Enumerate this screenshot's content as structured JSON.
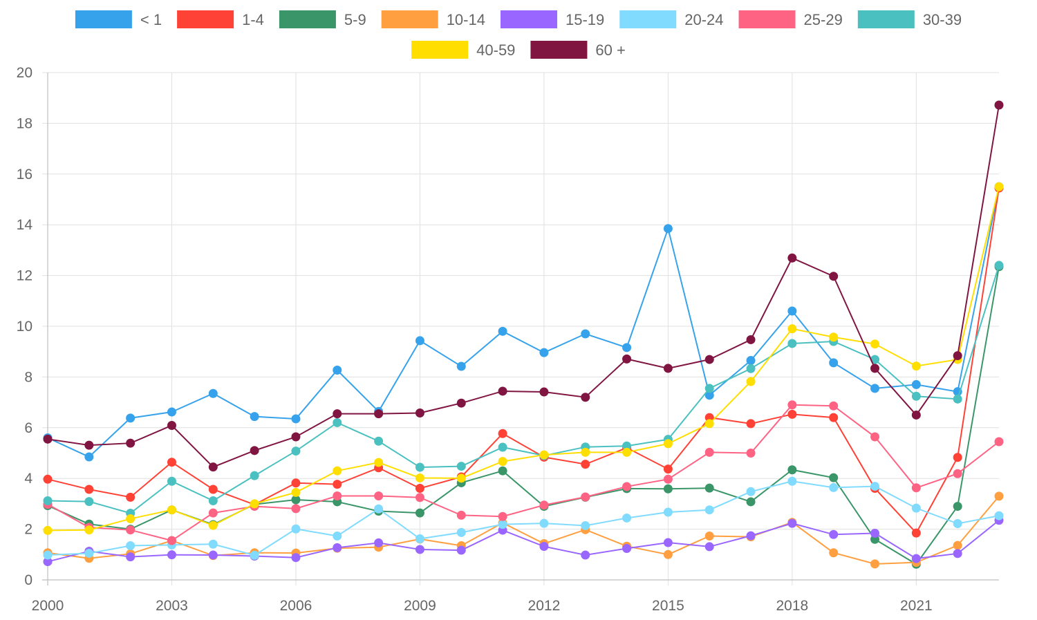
{
  "chart_data": {
    "type": "line",
    "title": "",
    "xlabel": "",
    "ylabel": "",
    "x": [
      2000,
      2001,
      2002,
      2003,
      2004,
      2005,
      2006,
      2007,
      2008,
      2009,
      2010,
      2011,
      2012,
      2013,
      2014,
      2015,
      2016,
      2017,
      2018,
      2019,
      2020,
      2021,
      2022,
      2023
    ],
    "x_ticks": [
      "2000",
      "2003",
      "2006",
      "2009",
      "2012",
      "2015",
      "2018",
      "2021"
    ],
    "xlim": [
      2000,
      2023
    ],
    "ylim": [
      0,
      20
    ],
    "y_ticks": [
      "0",
      "2",
      "4",
      "6",
      "8",
      "10",
      "12",
      "14",
      "16",
      "18",
      "20"
    ],
    "grid": true,
    "legend_position": "top",
    "series": [
      {
        "name": "< 1",
        "color": "#36a2eb",
        "values": [
          5.6,
          4.85,
          6.38,
          6.62,
          7.35,
          6.44,
          6.35,
          8.27,
          6.64,
          9.43,
          8.42,
          9.8,
          8.96,
          9.7,
          9.16,
          13.85,
          7.28,
          8.65,
          10.6,
          8.56,
          7.55,
          7.7,
          7.42,
          15.5
        ]
      },
      {
        "name": "1-4",
        "color": "#ff4136",
        "values": [
          3.97,
          3.57,
          3.26,
          4.64,
          3.57,
          2.97,
          3.82,
          3.77,
          4.42,
          3.61,
          4.06,
          5.77,
          4.84,
          4.56,
          5.21,
          4.37,
          6.4,
          6.16,
          6.53,
          6.4,
          3.61,
          1.85,
          4.83,
          15.45
        ]
      },
      {
        "name": "5-9",
        "color": "#3a9669",
        "values": [
          2.93,
          2.2,
          2.0,
          2.76,
          2.18,
          2.98,
          3.16,
          3.08,
          2.71,
          2.64,
          3.83,
          4.3,
          2.9,
          3.26,
          3.6,
          3.59,
          3.62,
          3.08,
          4.34,
          4.03,
          1.6,
          0.62,
          2.9,
          12.35
        ]
      },
      {
        "name": "10-14",
        "color": "#ff9f40",
        "values": [
          1.07,
          0.85,
          1.03,
          1.55,
          0.96,
          1.07,
          1.06,
          1.25,
          1.29,
          1.61,
          1.35,
          2.25,
          1.43,
          1.98,
          1.33,
          1.0,
          1.73,
          1.7,
          2.27,
          1.07,
          0.63,
          0.69,
          1.36,
          3.3
        ]
      },
      {
        "name": "15-19",
        "color": "#9966ff",
        "values": [
          0.72,
          1.13,
          0.91,
          0.99,
          0.98,
          0.94,
          0.88,
          1.27,
          1.46,
          1.2,
          1.17,
          1.96,
          1.32,
          0.98,
          1.24,
          1.47,
          1.31,
          1.74,
          2.23,
          1.79,
          1.84,
          0.84,
          1.04,
          2.35
        ]
      },
      {
        "name": "20-24",
        "color": "#80dbff",
        "values": [
          0.98,
          1.05,
          1.35,
          1.38,
          1.41,
          0.97,
          2.01,
          1.73,
          2.8,
          1.62,
          1.87,
          2.19,
          2.23,
          2.14,
          2.44,
          2.67,
          2.76,
          3.48,
          3.89,
          3.64,
          3.69,
          2.83,
          2.22,
          2.53
        ]
      },
      {
        "name": "25-29",
        "color": "#ff6384",
        "values": [
          2.98,
          2.07,
          1.97,
          1.55,
          2.64,
          2.9,
          2.81,
          3.31,
          3.31,
          3.25,
          2.55,
          2.5,
          2.95,
          3.27,
          3.68,
          3.97,
          5.03,
          5.0,
          6.9,
          6.86,
          5.64,
          3.63,
          4.19,
          5.45
        ]
      },
      {
        "name": "30-39",
        "color": "#4bc0c0",
        "values": [
          3.12,
          3.09,
          2.63,
          3.89,
          3.12,
          4.11,
          5.08,
          6.2,
          5.47,
          4.44,
          4.48,
          5.23,
          4.9,
          5.24,
          5.28,
          5.54,
          7.55,
          8.33,
          9.32,
          9.4,
          8.69,
          7.24,
          7.13,
          12.4
        ]
      },
      {
        "name": "40-59",
        "color": "#ffde00",
        "values": [
          1.95,
          1.97,
          2.41,
          2.76,
          2.15,
          3.0,
          3.45,
          4.3,
          4.63,
          4.02,
          4.01,
          4.67,
          4.93,
          5.03,
          5.03,
          5.37,
          6.16,
          7.82,
          9.9,
          9.57,
          9.3,
          8.43,
          8.69,
          15.5
        ]
      },
      {
        "name": "60 +",
        "color": "#801542",
        "values": [
          5.55,
          5.31,
          5.39,
          6.09,
          4.45,
          5.1,
          5.64,
          6.55,
          6.55,
          6.58,
          6.97,
          7.44,
          7.41,
          7.2,
          8.71,
          8.34,
          8.69,
          9.47,
          12.69,
          11.97,
          8.34,
          6.5,
          8.84,
          18.72
        ]
      }
    ]
  }
}
